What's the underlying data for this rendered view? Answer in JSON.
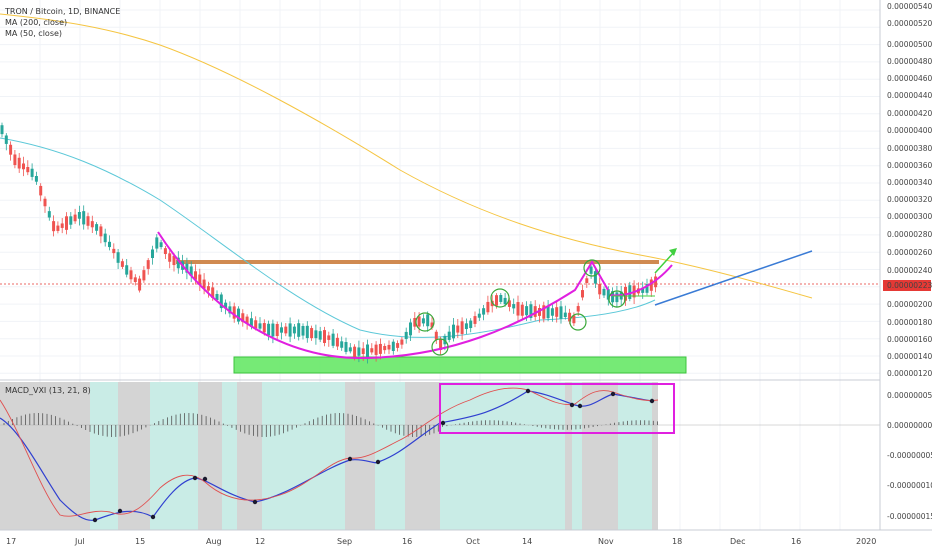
{
  "header": {
    "symbol_line": "TRON / Bitcoin, 1D, BINANCE",
    "ma200_label": "MA (200, close)",
    "ma50_label": "MA (50, close)"
  },
  "indicator": {
    "label": "MACD_VXI (13, 21, 8)"
  },
  "price_axis": {
    "ticks": [
      "0.00000540",
      "0.00000520",
      "0.00000500",
      "0.00000480",
      "0.00000460",
      "0.00000440",
      "0.00000420",
      "0.00000400",
      "0.00000380",
      "0.00000360",
      "0.00000340",
      "0.00000320",
      "0.00000300",
      "0.00000280",
      "0.00000260",
      "0.00000240",
      "0.00000200",
      "0.00000180",
      "0.00000160",
      "0.00000140",
      "0.00000120"
    ],
    "last_price": "0.00000223"
  },
  "macd_axis": {
    "ticks": [
      "0.00000005",
      "0.00000000",
      "-0.00000005",
      "-0.00000010",
      "-0.00000015"
    ]
  },
  "time_axis": {
    "ticks": [
      "17",
      "Jul",
      "15",
      "Aug",
      "12",
      "Sep",
      "16",
      "Oct",
      "14",
      "Nov",
      "18",
      "Dec",
      "16",
      "2020"
    ]
  },
  "colors": {
    "up": "#26a69a",
    "down": "#ef5350",
    "ma200": "#f5c542",
    "ma50": "#5cc8d8",
    "cup": "#e020e0",
    "resistance": "#c87533",
    "support_zone": "#5ee65e",
    "trend": "#3a7bd5",
    "last_price": "#e53935",
    "macd_fast": "#3040d0",
    "macd_slow": "#e05050"
  },
  "chart_data": [
    {
      "type": "candlestick",
      "title": "TRON / Bitcoin, 1D, BINANCE",
      "ylim": [
        1.15e-06,
        5.48e-06
      ],
      "series": [
        {
          "name": "MA (200, close)"
        },
        {
          "name": "MA (50, close)"
        }
      ],
      "last_price": 2.23e-06
    },
    {
      "type": "line",
      "title": "MACD_VXI (13, 21, 8)",
      "ylim": [
        -1.7e-07,
        7e-08
      ]
    }
  ]
}
